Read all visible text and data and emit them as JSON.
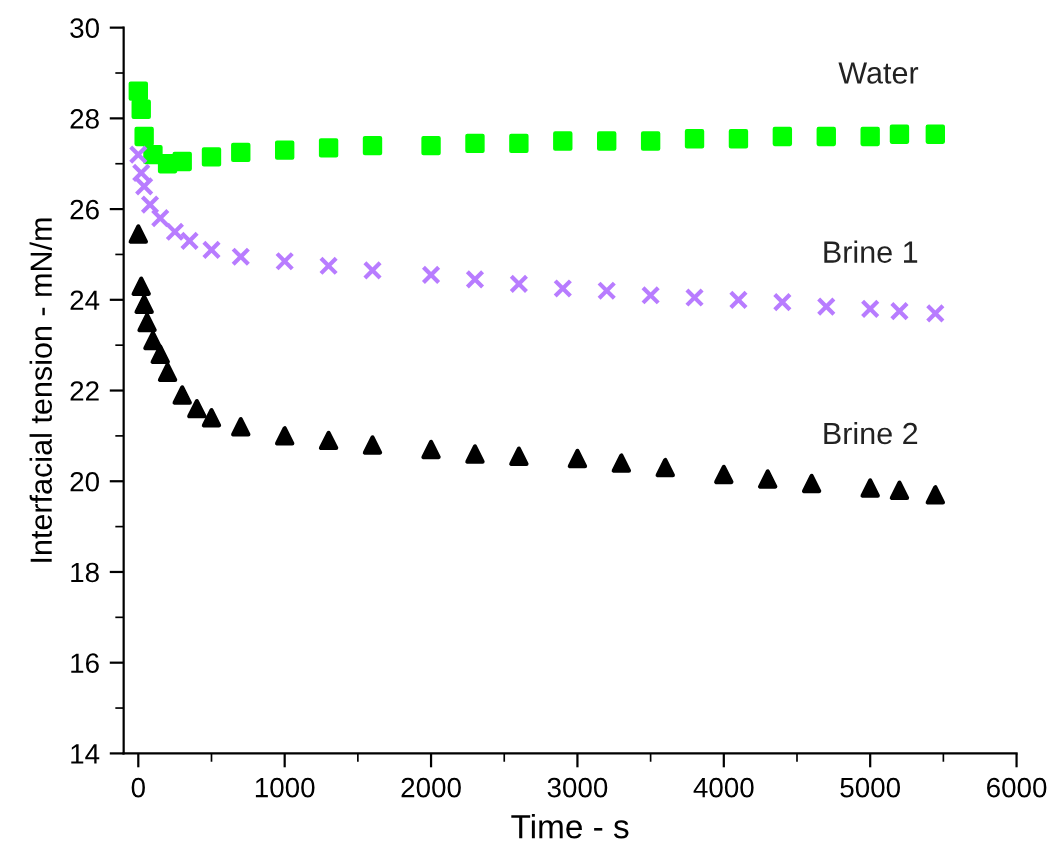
{
  "chart_data": {
    "type": "scatter",
    "xlabel": "Time - s",
    "ylabel": "Interfacial tension - mN/m",
    "xlim": [
      -100,
      6000
    ],
    "ylim": [
      14,
      30
    ],
    "xticks": [
      0,
      1000,
      2000,
      3000,
      4000,
      5000,
      6000
    ],
    "yticks": [
      14,
      16,
      18,
      20,
      22,
      24,
      26,
      28,
      30
    ],
    "grid": false,
    "legend": false,
    "series": [
      {
        "name": "Water",
        "color": "#00ff00",
        "marker": "square",
        "x": [
          0,
          20,
          40,
          100,
          200,
          300,
          500,
          700,
          1000,
          1300,
          1600,
          2000,
          2300,
          2600,
          2900,
          3200,
          3500,
          3800,
          4100,
          4400,
          4700,
          5000,
          5200,
          5445
        ],
        "values": [
          28.6,
          28.2,
          27.6,
          27.2,
          27.0,
          27.05,
          27.15,
          27.25,
          27.3,
          27.35,
          27.4,
          27.4,
          27.45,
          27.45,
          27.5,
          27.5,
          27.5,
          27.55,
          27.55,
          27.6,
          27.6,
          27.6,
          27.65,
          27.65
        ]
      },
      {
        "name": "Brine 1",
        "color": "#b87cff",
        "marker": "cross",
        "x": [
          0,
          20,
          40,
          80,
          150,
          250,
          350,
          500,
          700,
          1000,
          1300,
          1600,
          2000,
          2300,
          2600,
          2900,
          3200,
          3500,
          3800,
          4100,
          4400,
          4700,
          5000,
          5200,
          5445
        ],
        "values": [
          27.2,
          26.8,
          26.5,
          26.1,
          25.8,
          25.5,
          25.3,
          25.1,
          24.95,
          24.85,
          24.75,
          24.65,
          24.55,
          24.45,
          24.35,
          24.25,
          24.2,
          24.1,
          24.05,
          24.0,
          23.95,
          23.85,
          23.8,
          23.75,
          23.7
        ]
      },
      {
        "name": "Brine 2",
        "color": "#000000",
        "marker": "triangle",
        "x": [
          0,
          20,
          40,
          60,
          100,
          150,
          200,
          300,
          400,
          500,
          700,
          1000,
          1300,
          1600,
          2000,
          2300,
          2600,
          3000,
          3300,
          3600,
          4000,
          4300,
          4600,
          5000,
          5200,
          5445
        ],
        "values": [
          25.45,
          24.3,
          23.9,
          23.5,
          23.1,
          22.8,
          22.4,
          21.9,
          21.6,
          21.4,
          21.2,
          21.0,
          20.9,
          20.8,
          20.7,
          20.6,
          20.55,
          20.5,
          20.4,
          20.3,
          20.15,
          20.05,
          19.95,
          19.85,
          19.8,
          19.7
        ]
      }
    ]
  }
}
